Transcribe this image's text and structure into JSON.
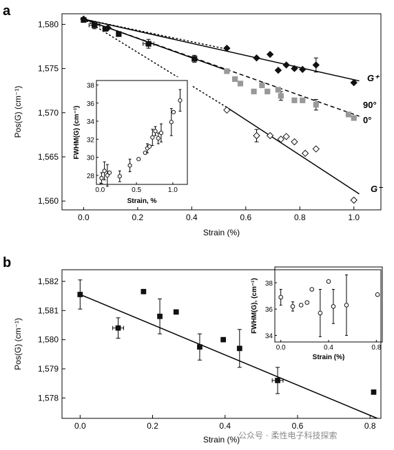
{
  "watermark": "公众号 · 柔性电子科技探索",
  "chart_data": [
    {
      "panel": "a",
      "type": "scatter",
      "xlabel": "Strain (%)",
      "ylabel": "Pos(G) (cm⁻¹)",
      "xlim": [
        -0.08,
        1.1
      ],
      "ylim": [
        1559,
        1581.2
      ],
      "xticks": [
        0.0,
        0.2,
        0.4,
        0.6,
        0.8,
        1.0
      ],
      "xtick_labels": [
        "0.0",
        "0.2",
        "0.4",
        "0.6",
        "0.8",
        "1.0"
      ],
      "yticks": [
        1560,
        1565,
        1570,
        1575,
        1580
      ],
      "ytick_labels": [
        "1,560",
        "1,565",
        "1,570",
        "1,575",
        "1,580"
      ],
      "series": [
        {
          "name": "G⁺",
          "marker": "diamond-filled",
          "color": "#111111",
          "points": [
            [
              0.0,
              1580.6
            ],
            [
              0.09,
              1579.6
            ],
            [
              0.53,
              1577.3
            ],
            [
              0.64,
              1576.2
            ],
            [
              0.69,
              1576.6
            ],
            [
              0.72,
              1574.8
            ],
            [
              0.75,
              1575.4
            ],
            [
              0.78,
              1575.0
            ],
            [
              0.81,
              1574.9
            ],
            [
              0.86,
              1575.4
            ],
            [
              1.0,
              1573.4
            ]
          ]
        },
        {
          "name": "90°",
          "marker": "square-filled",
          "color": "#999999",
          "points": [
            [
              0.53,
              1574.7
            ],
            [
              0.56,
              1573.8
            ],
            [
              0.58,
              1573.3
            ],
            [
              0.63,
              1572.4
            ],
            [
              0.66,
              1573.1
            ],
            [
              0.68,
              1572.4
            ],
            [
              0.72,
              1572.6
            ],
            [
              0.73,
              1571.9
            ],
            [
              0.78,
              1571.4
            ],
            [
              0.81,
              1571.4
            ],
            [
              0.86,
              1570.9
            ],
            [
              0.98,
              1569.8
            ],
            [
              1.0,
              1569.4
            ]
          ]
        },
        {
          "name": "0°",
          "marker": "square-filled",
          "color": "#111111",
          "points": [
            [
              0.0,
              1580.5
            ],
            [
              0.04,
              1579.9
            ],
            [
              0.08,
              1579.5
            ],
            [
              0.13,
              1578.9
            ],
            [
              0.24,
              1577.8
            ],
            [
              0.41,
              1576.1
            ]
          ]
        },
        {
          "name": "G⁻",
          "marker": "diamond-open",
          "color": "#111111",
          "points": [
            [
              0.53,
              1570.3
            ],
            [
              0.64,
              1567.4
            ],
            [
              0.69,
              1567.4
            ],
            [
              0.73,
              1567.0
            ],
            [
              0.75,
              1567.3
            ],
            [
              0.78,
              1566.7
            ],
            [
              0.82,
              1565.4
            ],
            [
              0.86,
              1565.9
            ],
            [
              1.0,
              1560.1
            ]
          ]
        }
      ],
      "errorbars": [
        {
          "x": 0.04,
          "y": 1579.9,
          "yerr": 0.4,
          "xerr": 0.02
        },
        {
          "x": 0.24,
          "y": 1577.8,
          "yerr": 0.5,
          "xerr": 0.02
        },
        {
          "x": 0.41,
          "y": 1576.1,
          "yerr": 0.4,
          "xerr": 0.0
        },
        {
          "x": 0.64,
          "y": 1567.4,
          "yerr": 0.7,
          "xerr": 0.0
        },
        {
          "x": 0.86,
          "y": 1575.4,
          "yerr": 0.8,
          "xerr": 0.0
        },
        {
          "x": 0.73,
          "y": 1571.9,
          "yerr": 0.5,
          "xerr": 0.0
        },
        {
          "x": 0.86,
          "y": 1570.9,
          "yerr": 0.6,
          "xerr": 0.0
        }
      ],
      "fits": [
        {
          "series": "G⁺",
          "style": "solid",
          "from": [
            0.0,
            1580.6
          ],
          "to": [
            1.02,
            1573.6
          ]
        },
        {
          "series": "G⁺",
          "style": "dotted",
          "from": [
            0.0,
            1580.6
          ],
          "to": [
            0.53,
            1577.2
          ]
        },
        {
          "series": "90°",
          "style": "dashed",
          "from": [
            0.0,
            1580.6
          ],
          "to": [
            1.02,
            1569.6
          ]
        },
        {
          "series": "0°",
          "style": "solid",
          "from": [
            0.0,
            1580.6
          ],
          "to": [
            0.53,
            1574.8
          ]
        },
        {
          "series": "G⁻",
          "style": "solid",
          "from": [
            0.53,
            1570.6
          ],
          "to": [
            1.02,
            1560.8
          ]
        },
        {
          "series": "G⁻",
          "style": "dotted",
          "from": [
            0.0,
            1580.6
          ],
          "to": [
            0.53,
            1570.6
          ]
        }
      ],
      "series_labels": [
        "G⁺",
        "90°",
        "0°",
        "G⁻"
      ],
      "inset": {
        "type": "scatter",
        "xlabel": "Strain, %",
        "ylabel": "FWHM(G) (cm⁻¹)",
        "xlim": [
          -0.05,
          1.2
        ],
        "ylim": [
          27,
          38.5
        ],
        "xticks": [
          0.0,
          0.5,
          1.0
        ],
        "xtick_labels": [
          "0.0",
          "0.5",
          "1.0"
        ],
        "yticks": [
          28,
          30,
          32,
          34,
          36,
          38
        ],
        "ytick_labels": [
          "28",
          "30",
          "32",
          "34",
          "36",
          "38"
        ],
        "points": [
          {
            "x": 0.02,
            "y": 27.7,
            "yerr": 0.6
          },
          {
            "x": 0.06,
            "y": 28.5,
            "yerr": 1.0
          },
          {
            "x": 0.1,
            "y": 28.0,
            "yerr": 1.2
          },
          {
            "x": 0.13,
            "y": 28.3,
            "yerr": 0.0
          },
          {
            "x": 0.27,
            "y": 27.9,
            "yerr": 0.6
          },
          {
            "x": 0.41,
            "y": 29.1,
            "yerr": 0.7
          },
          {
            "x": 0.53,
            "y": 29.8,
            "yerr": 0.0
          },
          {
            "x": 0.62,
            "y": 30.5,
            "yerr": 0.0
          },
          {
            "x": 0.65,
            "y": 31.0,
            "yerr": 0.5
          },
          {
            "x": 0.68,
            "y": 31.2,
            "yerr": 0.0
          },
          {
            "x": 0.72,
            "y": 32.2,
            "yerr": 0.9
          },
          {
            "x": 0.76,
            "y": 32.9,
            "yerr": 0.5
          },
          {
            "x": 0.8,
            "y": 32.1,
            "yerr": 0.6
          },
          {
            "x": 0.84,
            "y": 32.7,
            "yerr": 1.0
          },
          {
            "x": 0.98,
            "y": 33.9,
            "yerr": 1.5
          },
          {
            "x": 1.01,
            "y": 35.0,
            "yerr": 0.0
          },
          {
            "x": 1.1,
            "y": 36.3,
            "yerr": 1.2
          }
        ]
      }
    },
    {
      "panel": "b",
      "type": "scatter",
      "xlabel": "Strain (%)",
      "ylabel": "Pos(G) (cm⁻¹)",
      "xlim": [
        -0.05,
        0.83
      ],
      "ylim": [
        1577.3,
        1582.4
      ],
      "xticks": [
        0.0,
        0.2,
        0.4,
        0.6,
        0.8
      ],
      "xtick_labels": [
        "0.0",
        "0.2",
        "0.4",
        "0.6",
        "0.8"
      ],
      "yticks": [
        1578,
        1579,
        1580,
        1581,
        1582
      ],
      "ytick_labels": [
        "1,578",
        "1,579",
        "1,580",
        "1,581",
        "1,582"
      ],
      "points": [
        {
          "x": 0.0,
          "y": 1581.55,
          "yerr": 0.5,
          "xerr": 0.0
        },
        {
          "x": 0.105,
          "y": 1580.4,
          "yerr": 0.35,
          "xerr": 0.015
        },
        {
          "x": 0.175,
          "y": 1581.65,
          "yerr": 0.0,
          "xerr": 0.0
        },
        {
          "x": 0.22,
          "y": 1580.8,
          "yerr": 0.6,
          "xerr": 0.0
        },
        {
          "x": 0.265,
          "y": 1580.95,
          "yerr": 0.0,
          "xerr": 0.0
        },
        {
          "x": 0.33,
          "y": 1579.75,
          "yerr": 0.45,
          "xerr": 0.0
        },
        {
          "x": 0.395,
          "y": 1580.0,
          "yerr": 0.0,
          "xerr": 0.0
        },
        {
          "x": 0.44,
          "y": 1579.7,
          "yerr": 0.65,
          "xerr": 0.0
        },
        {
          "x": 0.545,
          "y": 1578.6,
          "yerr": 0.45,
          "xerr": 0.015
        },
        {
          "x": 0.81,
          "y": 1578.2,
          "yerr": 0.0,
          "xerr": 0.0
        }
      ],
      "fit": {
        "style": "solid",
        "from": [
          0.0,
          1581.55
        ],
        "to": [
          0.82,
          1577.3
        ]
      },
      "inset": {
        "type": "scatter",
        "xlabel": "Strain (%)",
        "ylabel": "FWHM(G), (cm⁻¹)",
        "xlim": [
          -0.05,
          0.85
        ],
        "ylim": [
          33.5,
          39.2
        ],
        "xticks": [
          0.0,
          0.4,
          0.8
        ],
        "xtick_labels": [
          "0.0",
          "0.4",
          "0.8"
        ],
        "yticks": [
          34,
          36,
          38
        ],
        "ytick_labels": [
          "34",
          "36",
          "38"
        ],
        "points": [
          {
            "x": 0.0,
            "y": 36.9,
            "yerr": 0.6
          },
          {
            "x": 0.1,
            "y": 36.2,
            "yerr": 0.35
          },
          {
            "x": 0.17,
            "y": 36.3,
            "yerr": 0.0
          },
          {
            "x": 0.22,
            "y": 36.5,
            "yerr": 0.0
          },
          {
            "x": 0.26,
            "y": 37.5,
            "yerr": 0.0
          },
          {
            "x": 0.33,
            "y": 35.7,
            "yerr": 1.8
          },
          {
            "x": 0.4,
            "y": 38.1,
            "yerr": 0.0
          },
          {
            "x": 0.44,
            "y": 36.2,
            "yerr": 1.3
          },
          {
            "x": 0.55,
            "y": 36.3,
            "yerr": 2.3
          },
          {
            "x": 0.81,
            "y": 37.1,
            "yerr": 0.0
          }
        ]
      }
    }
  ]
}
